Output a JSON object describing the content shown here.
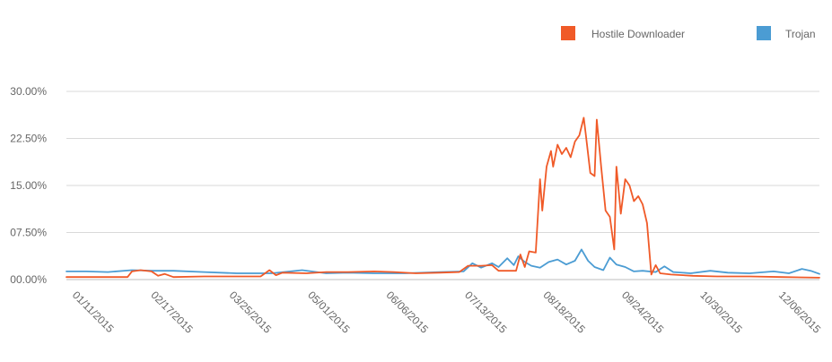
{
  "chart_data": {
    "type": "line",
    "xlabel": "",
    "ylabel": "",
    "x_ticks": [
      "01/11/2015",
      "02/17/2015",
      "03/25/2015",
      "05/01/2015",
      "06/06/2015",
      "07/13/2015",
      "08/18/2015",
      "09/24/2015",
      "10/30/2015",
      "12/06/2015"
    ],
    "y_ticks": [
      "00.00%",
      "07.50%",
      "15.00%",
      "22.50%",
      "30.00%"
    ],
    "ylim": [
      0,
      30
    ],
    "xlim": [
      "2015-01-11",
      "2015-12-22"
    ],
    "grid": true,
    "legend_position": "top-right",
    "series": [
      {
        "name": "Hostile Downloader",
        "color": "#f05a28",
        "points": [
          [
            "2015-01-11",
            0.4
          ],
          [
            "2015-01-20",
            0.4
          ],
          [
            "2015-01-30",
            0.4
          ],
          [
            "2015-02-08",
            0.4
          ],
          [
            "2015-02-10",
            1.3
          ],
          [
            "2015-02-14",
            1.5
          ],
          [
            "2015-02-19",
            1.3
          ],
          [
            "2015-02-22",
            0.6
          ],
          [
            "2015-02-25",
            0.9
          ],
          [
            "2015-03-01",
            0.4
          ],
          [
            "2015-03-15",
            0.5
          ],
          [
            "2015-03-30",
            0.5
          ],
          [
            "2015-04-10",
            0.5
          ],
          [
            "2015-04-14",
            1.5
          ],
          [
            "2015-04-17",
            0.7
          ],
          [
            "2015-04-20",
            1.1
          ],
          [
            "2015-05-01",
            1.0
          ],
          [
            "2015-05-10",
            1.2
          ],
          [
            "2015-05-20",
            1.2
          ],
          [
            "2015-06-01",
            1.3
          ],
          [
            "2015-06-10",
            1.2
          ],
          [
            "2015-06-20",
            1.0
          ],
          [
            "2015-07-01",
            1.1
          ],
          [
            "2015-07-10",
            1.2
          ],
          [
            "2015-07-14",
            2.2
          ],
          [
            "2015-07-20",
            2.2
          ],
          [
            "2015-07-25",
            2.3
          ],
          [
            "2015-07-28",
            1.4
          ],
          [
            "2015-08-05",
            1.4
          ],
          [
            "2015-08-07",
            4.0
          ],
          [
            "2015-08-09",
            2.0
          ],
          [
            "2015-08-11",
            4.5
          ],
          [
            "2015-08-14",
            4.3
          ],
          [
            "2015-08-16",
            16.0
          ],
          [
            "2015-08-17",
            11.0
          ],
          [
            "2015-08-19",
            18.0
          ],
          [
            "2015-08-21",
            20.5
          ],
          [
            "2015-08-22",
            18.0
          ],
          [
            "2015-08-24",
            21.5
          ],
          [
            "2015-08-26",
            20.0
          ],
          [
            "2015-08-28",
            21.0
          ],
          [
            "2015-08-30",
            19.5
          ],
          [
            "2015-09-01",
            22.0
          ],
          [
            "2015-09-03",
            23.0
          ],
          [
            "2015-09-05",
            25.8
          ],
          [
            "2015-09-06",
            23.0
          ],
          [
            "2015-09-08",
            17.0
          ],
          [
            "2015-09-10",
            16.5
          ],
          [
            "2015-09-11",
            25.5
          ],
          [
            "2015-09-13",
            18.0
          ],
          [
            "2015-09-15",
            11.0
          ],
          [
            "2015-09-17",
            10.0
          ],
          [
            "2015-09-19",
            4.8
          ],
          [
            "2015-09-20",
            18.0
          ],
          [
            "2015-09-22",
            10.5
          ],
          [
            "2015-09-24",
            16.0
          ],
          [
            "2015-09-26",
            15.0
          ],
          [
            "2015-09-28",
            12.5
          ],
          [
            "2015-09-30",
            13.3
          ],
          [
            "2015-10-02",
            12.0
          ],
          [
            "2015-10-04",
            9.0
          ],
          [
            "2015-10-06",
            0.8
          ],
          [
            "2015-10-08",
            2.3
          ],
          [
            "2015-10-10",
            1.0
          ],
          [
            "2015-10-15",
            0.8
          ],
          [
            "2015-10-25",
            0.6
          ],
          [
            "2015-11-05",
            0.5
          ],
          [
            "2015-11-20",
            0.5
          ],
          [
            "2015-12-05",
            0.4
          ],
          [
            "2015-12-22",
            0.3
          ]
        ]
      },
      {
        "name": "Trojan",
        "color": "#4b9cd3",
        "points": [
          [
            "2015-01-11",
            1.3
          ],
          [
            "2015-01-20",
            1.3
          ],
          [
            "2015-01-30",
            1.2
          ],
          [
            "2015-02-10",
            1.5
          ],
          [
            "2015-02-20",
            1.4
          ],
          [
            "2015-03-01",
            1.4
          ],
          [
            "2015-03-15",
            1.2
          ],
          [
            "2015-03-30",
            1.0
          ],
          [
            "2015-04-15",
            1.0
          ],
          [
            "2015-04-29",
            1.5
          ],
          [
            "2015-05-10",
            1.0
          ],
          [
            "2015-05-20",
            1.1
          ],
          [
            "2015-06-01",
            1.0
          ],
          [
            "2015-06-15",
            1.0
          ],
          [
            "2015-07-01",
            1.2
          ],
          [
            "2015-07-12",
            1.3
          ],
          [
            "2015-07-16",
            2.6
          ],
          [
            "2015-07-20",
            1.9
          ],
          [
            "2015-07-25",
            2.6
          ],
          [
            "2015-07-28",
            2.0
          ],
          [
            "2015-08-01",
            3.4
          ],
          [
            "2015-08-04",
            2.3
          ],
          [
            "2015-08-06",
            3.7
          ],
          [
            "2015-08-09",
            2.8
          ],
          [
            "2015-08-12",
            2.2
          ],
          [
            "2015-08-16",
            1.9
          ],
          [
            "2015-08-20",
            2.8
          ],
          [
            "2015-08-24",
            3.2
          ],
          [
            "2015-08-28",
            2.4
          ],
          [
            "2015-09-01",
            3.0
          ],
          [
            "2015-09-04",
            4.8
          ],
          [
            "2015-09-07",
            3.0
          ],
          [
            "2015-09-10",
            2.0
          ],
          [
            "2015-09-14",
            1.5
          ],
          [
            "2015-09-17",
            3.5
          ],
          [
            "2015-09-20",
            2.4
          ],
          [
            "2015-09-24",
            2.0
          ],
          [
            "2015-09-28",
            1.3
          ],
          [
            "2015-10-02",
            1.4
          ],
          [
            "2015-10-08",
            1.2
          ],
          [
            "2015-10-12",
            2.1
          ],
          [
            "2015-10-16",
            1.2
          ],
          [
            "2015-10-24",
            1.0
          ],
          [
            "2015-11-02",
            1.4
          ],
          [
            "2015-11-10",
            1.1
          ],
          [
            "2015-11-20",
            1.0
          ],
          [
            "2015-12-01",
            1.3
          ],
          [
            "2015-12-08",
            1.0
          ],
          [
            "2015-12-14",
            1.7
          ],
          [
            "2015-12-18",
            1.4
          ],
          [
            "2015-12-22",
            0.9
          ]
        ]
      }
    ]
  }
}
